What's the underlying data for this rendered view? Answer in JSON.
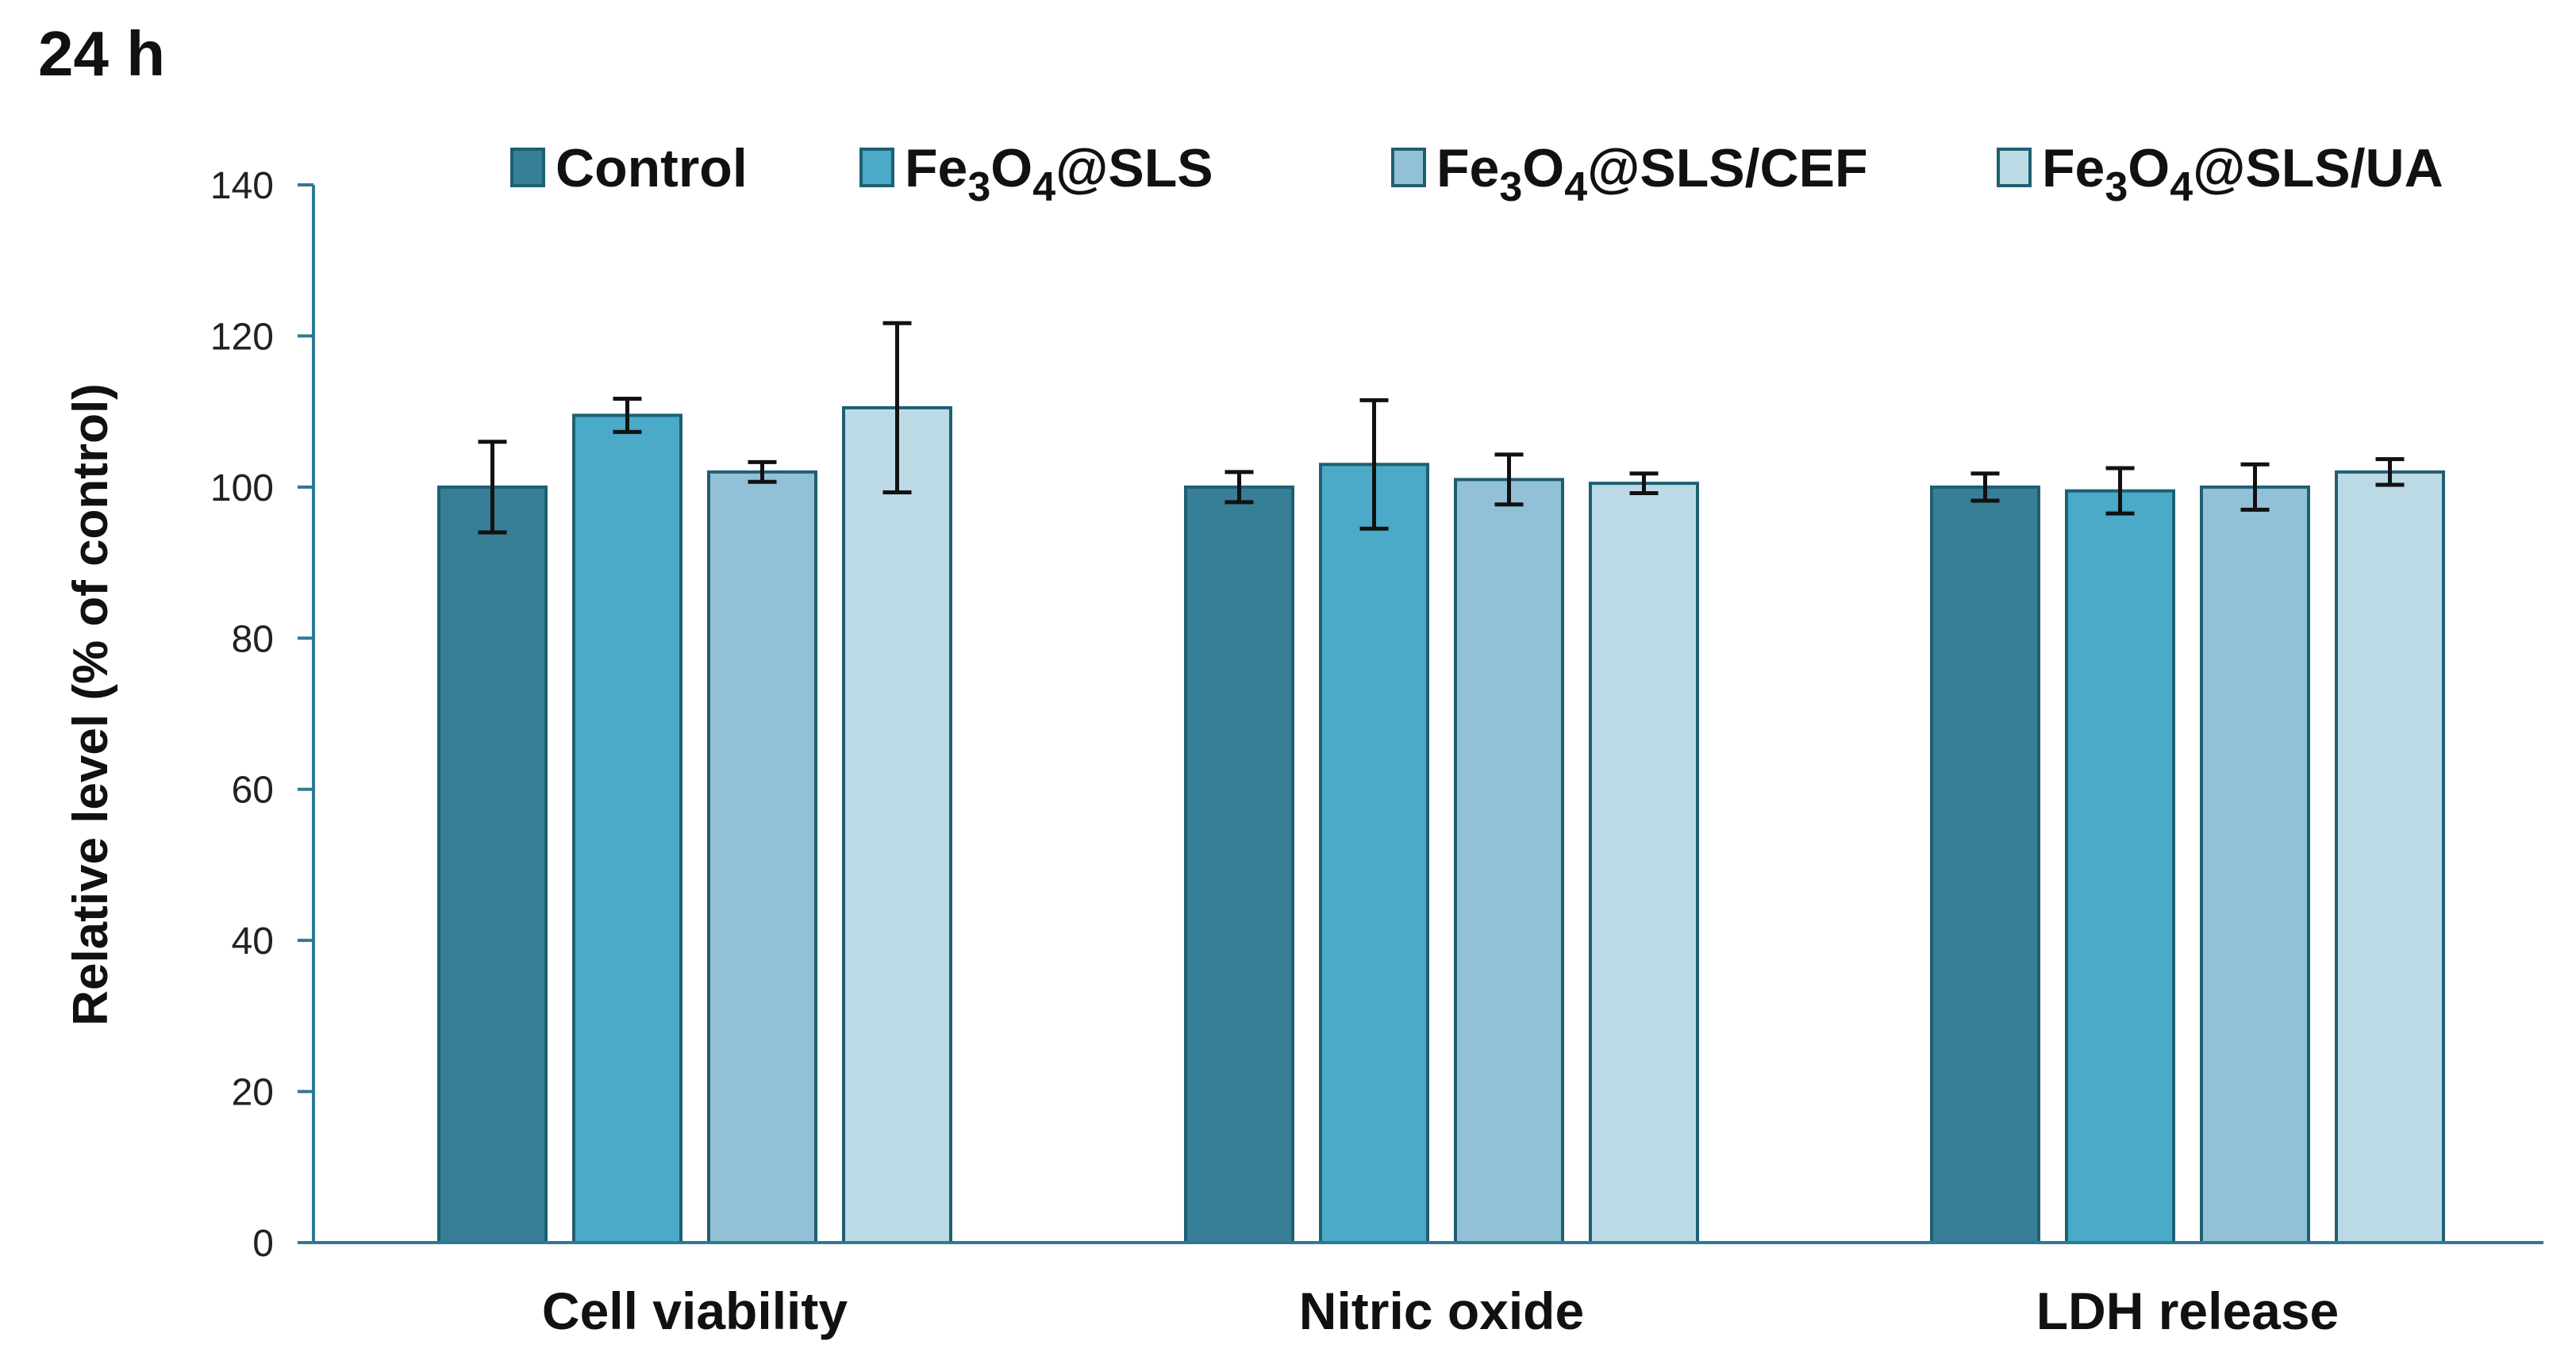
{
  "panel_title": "24 h",
  "chart_data": {
    "type": "bar",
    "title": "24 h",
    "xlabel": "",
    "ylabel": "Relative level (% of control)",
    "ylim": [
      0,
      140
    ],
    "yticks": [
      0,
      20,
      40,
      60,
      80,
      100,
      120,
      140
    ],
    "categories": [
      "Cell viability",
      "Nitric oxide",
      "LDH release"
    ],
    "legend_position": "top",
    "grid": false,
    "series": [
      {
        "name": "Control",
        "legend_parts": [
          [
            "Control",
            ""
          ]
        ],
        "color": "#367f96",
        "values": [
          100,
          100,
          100
        ],
        "errors": [
          6,
          2,
          1.8
        ]
      },
      {
        "name": "Fe3O4@SLS",
        "legend_parts": [
          [
            "Fe",
            ""
          ],
          [
            "3",
            "sub"
          ],
          [
            "O",
            ""
          ],
          [
            "4",
            "sub"
          ],
          [
            "@SLS",
            ""
          ]
        ],
        "color": "#4aaac8",
        "values": [
          109.5,
          103,
          99.5
        ],
        "errors": [
          2.2,
          8.5,
          3
        ]
      },
      {
        "name": "Fe3O4@SLS/CEF",
        "legend_parts": [
          [
            "Fe",
            ""
          ],
          [
            "3",
            "sub"
          ],
          [
            "O",
            ""
          ],
          [
            "4",
            "sub"
          ],
          [
            "@SLS/CEF",
            ""
          ]
        ],
        "color": "#92c1d7",
        "values": [
          102,
          101,
          100
        ],
        "errors": [
          1.3,
          3.3,
          3
        ]
      },
      {
        "name": "Fe3O4@SLS/UA",
        "legend_parts": [
          [
            "Fe",
            ""
          ],
          [
            "3",
            "sub"
          ],
          [
            "O",
            ""
          ],
          [
            "4",
            "sub"
          ],
          [
            "@SLS/UA",
            ""
          ]
        ],
        "color": "#bcdae6",
        "values": [
          110.5,
          100.5,
          102
        ],
        "errors": [
          11.2,
          1.3,
          1.7
        ]
      }
    ]
  }
}
